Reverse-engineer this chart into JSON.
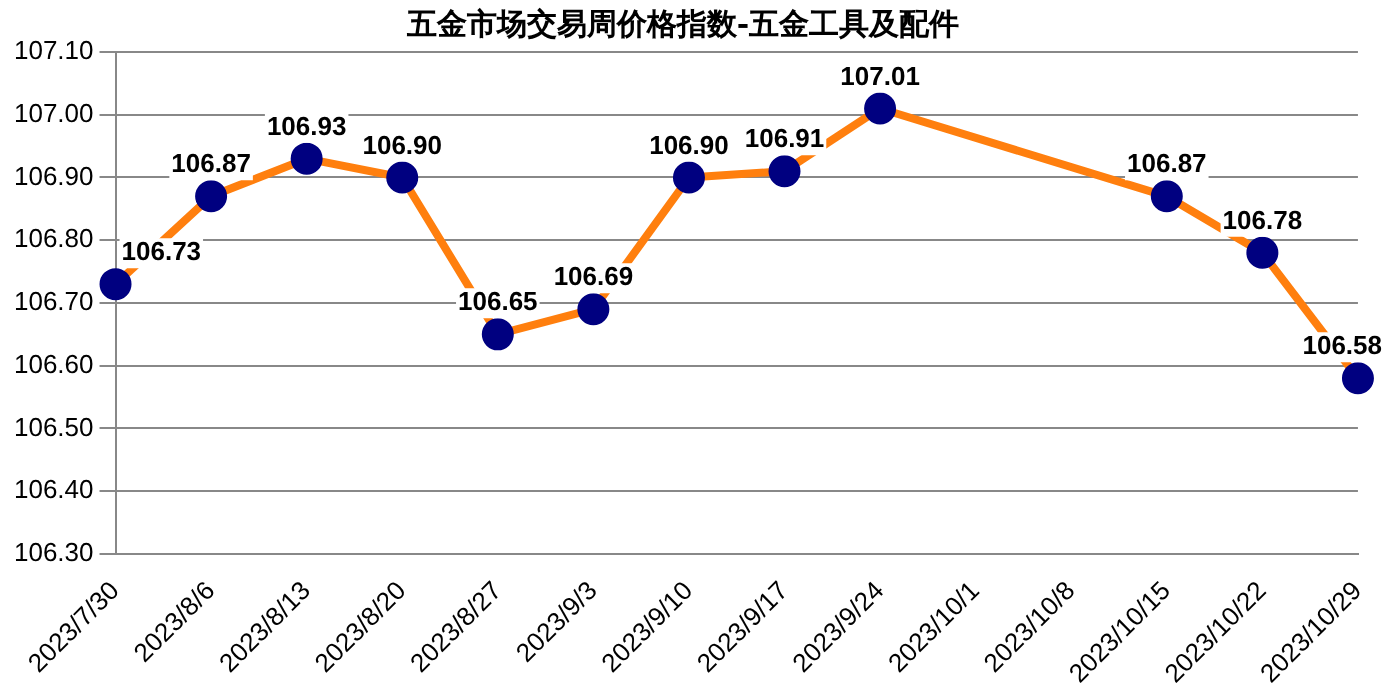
{
  "chart_data": {
    "type": "line",
    "title": "五金市场交易周价格指数-五金工具及配件",
    "categories": [
      "2023/7/30",
      "2023/8/6",
      "2023/8/13",
      "2023/8/20",
      "2023/8/27",
      "2023/9/3",
      "2023/9/10",
      "2023/9/17",
      "2023/9/24",
      "2023/10/1",
      "2023/10/8",
      "2023/10/15",
      "2023/10/22",
      "2023/10/29"
    ],
    "series": [
      {
        "color": "#ff7f0e",
        "values": [
          106.73,
          106.87,
          106.93,
          106.9,
          106.65,
          106.69,
          106.9,
          106.91,
          107.01,
          null,
          null,
          106.87,
          106.78,
          106.58
        ],
        "value_labels": [
          "106.73",
          "106.87",
          "106.93",
          "106.90",
          "106.65",
          "106.69",
          "106.90",
          "106.91",
          "107.01",
          null,
          null,
          "106.87",
          "106.78",
          "106.58"
        ]
      }
    ],
    "ylim": [
      106.3,
      107.1
    ],
    "yticks": [
      {
        "value": 106.3,
        "label": "106.30"
      },
      {
        "value": 106.4,
        "label": "106.40"
      },
      {
        "value": 106.5,
        "label": "106.50"
      },
      {
        "value": 106.6,
        "label": "106.60"
      },
      {
        "value": 106.7,
        "label": "106.70"
      },
      {
        "value": 106.8,
        "label": "106.80"
      },
      {
        "value": 106.9,
        "label": "106.90"
      },
      {
        "value": 107.0,
        "label": "107.00"
      },
      {
        "value": 107.1,
        "label": "107.10"
      }
    ],
    "grid": "y",
    "legend": false,
    "marker": "circle",
    "line_style": "solid"
  }
}
